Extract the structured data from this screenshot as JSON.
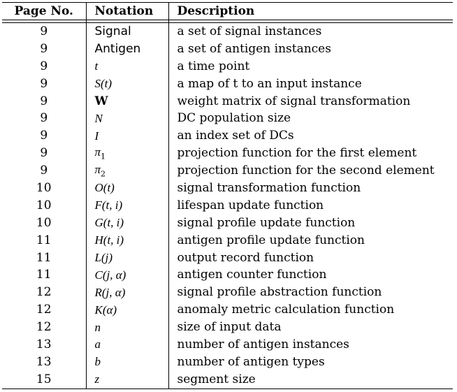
{
  "table": {
    "headers": {
      "page": "Page No.",
      "notation": "Notation",
      "description": "Description"
    },
    "rows": [
      {
        "page": "9",
        "notation": "Signal",
        "notation_style": "sans",
        "description": "a set of signal instances"
      },
      {
        "page": "9",
        "notation": "Antigen",
        "notation_style": "sans",
        "description": "a set of antigen instances"
      },
      {
        "page": "9",
        "notation": "t",
        "notation_style": "math",
        "description": "a time point"
      },
      {
        "page": "9",
        "notation": "S(t)",
        "notation_style": "math",
        "description": "a map of t to an input instance"
      },
      {
        "page": "9",
        "notation": "W",
        "notation_style": "bold",
        "description": "weight matrix of signal transformation"
      },
      {
        "page": "9",
        "notation": "N",
        "notation_style": "math",
        "description": "DC population size"
      },
      {
        "page": "9",
        "notation": "I",
        "notation_style": "math",
        "description": "an index set of DCs"
      },
      {
        "page": "9",
        "notation": "π",
        "notation_sub": "1",
        "notation_style": "math",
        "description": "projection function for the first element"
      },
      {
        "page": "9",
        "notation": "π",
        "notation_sub": "2",
        "notation_style": "math",
        "description": "projection function for the second element"
      },
      {
        "page": "10",
        "notation": "O(t)",
        "notation_style": "math",
        "description": "signal transformation function"
      },
      {
        "page": "10",
        "notation": "F(t, i)",
        "notation_style": "math",
        "description": "lifespan update function"
      },
      {
        "page": "10",
        "notation": "G(t, i)",
        "notation_style": "math",
        "description": "signal profile update function"
      },
      {
        "page": "11",
        "notation": "H(t, i)",
        "notation_style": "math",
        "description": "antigen profile update function"
      },
      {
        "page": "11",
        "notation": "L(j)",
        "notation_style": "math",
        "description": "output record function"
      },
      {
        "page": "11",
        "notation": "C(j, α)",
        "notation_style": "math",
        "description": "antigen counter function"
      },
      {
        "page": "12",
        "notation": "R(j, α)",
        "notation_style": "math",
        "description": "signal profile abstraction function"
      },
      {
        "page": "12",
        "notation": "K(α)",
        "notation_style": "math",
        "description": "anomaly metric calculation function"
      },
      {
        "page": "12",
        "notation": "n",
        "notation_style": "math",
        "description": "size of input data"
      },
      {
        "page": "13",
        "notation": "a",
        "notation_style": "math",
        "description": "number of antigen instances"
      },
      {
        "page": "13",
        "notation": "b",
        "notation_style": "math",
        "description": "number of antigen types"
      },
      {
        "page": "15",
        "notation": "z",
        "notation_style": "math",
        "description": "segment size"
      }
    ]
  }
}
